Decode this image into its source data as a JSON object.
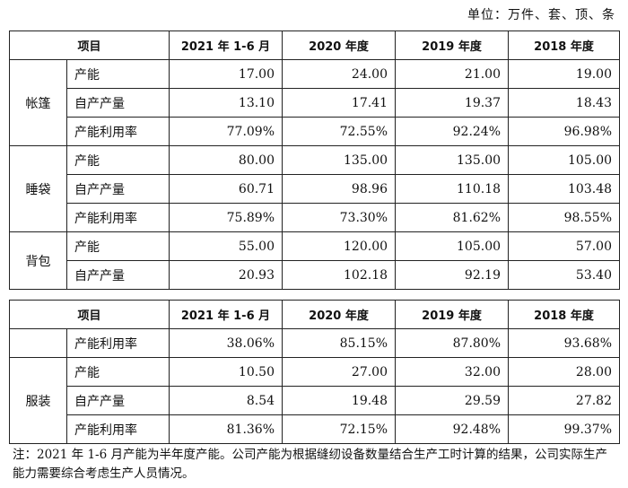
{
  "unit_label": "单位：万件、套、顶、条",
  "headers": [
    "项目",
    "2021 年 1-6 月",
    "2020 年度",
    "2019 年度",
    "2018 年度"
  ],
  "table1": [
    {
      "group": "帐篷",
      "rows": [
        {
          "label": "产能",
          "values": [
            "17.00",
            "24.00",
            "21.00",
            "19.00"
          ]
        },
        {
          "label": "自产产量",
          "values": [
            "13.10",
            "17.41",
            "19.37",
            "18.43"
          ]
        },
        {
          "label": "产能利用率",
          "values": [
            "77.09%",
            "72.55%",
            "92.24%",
            "96.98%"
          ]
        }
      ]
    },
    {
      "group": "睡袋",
      "rows": [
        {
          "label": "产能",
          "values": [
            "80.00",
            "135.00",
            "135.00",
            "105.00"
          ]
        },
        {
          "label": "自产产量",
          "values": [
            "60.71",
            "98.96",
            "110.18",
            "103.48"
          ]
        },
        {
          "label": "产能利用率",
          "values": [
            "75.89%",
            "73.30%",
            "81.62%",
            "98.55%"
          ]
        }
      ]
    },
    {
      "group": "背包",
      "rows": [
        {
          "label": "产能",
          "values": [
            "55.00",
            "120.00",
            "105.00",
            "57.00"
          ]
        },
        {
          "label": "自产产量",
          "values": [
            "20.93",
            "102.18",
            "92.19",
            "53.40"
          ]
        }
      ]
    }
  ],
  "table2": [
    {
      "group": "",
      "rows": [
        {
          "label": "产能利用率",
          "values": [
            "38.06%",
            "85.15%",
            "87.80%",
            "93.68%"
          ]
        }
      ]
    },
    {
      "group": "服装",
      "rows": [
        {
          "label": "产能",
          "values": [
            "10.50",
            "27.00",
            "32.00",
            "28.00"
          ]
        },
        {
          "label": "自产产量",
          "values": [
            "8.54",
            "19.48",
            "29.59",
            "27.82"
          ]
        },
        {
          "label": "产能利用率",
          "values": [
            "81.36%",
            "72.15%",
            "92.48%",
            "99.37%"
          ]
        }
      ]
    }
  ],
  "note": "注：2021 年 1-6 月产能为半年度产能。公司产能为根据缝纫设备数量结合生产工时计算的结果，公司实际生产能力需要综合考虑生产人员情况。"
}
